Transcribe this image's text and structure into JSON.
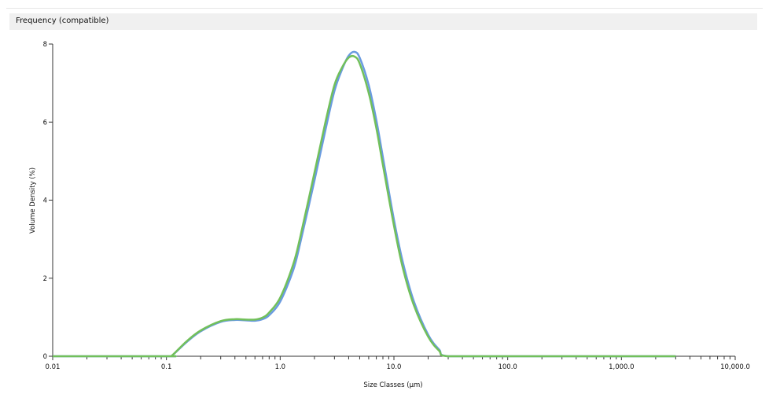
{
  "header": {
    "title": "Frequency (compatible)"
  },
  "chart_data": {
    "type": "line",
    "title": "Frequency (compatible)",
    "xlabel": "Size Classes (µm)",
    "ylabel": "Volume Density (%)",
    "xscale": "log",
    "xlim": [
      0.01,
      10000
    ],
    "ylim": [
      0,
      8
    ],
    "x_tick_labels": [
      "0.01",
      "0.1",
      "1.0",
      "10.0",
      "100.0",
      "1,000.0",
      "10,000.0"
    ],
    "y_tick_labels": [
      "0",
      "2",
      "4",
      "6",
      "8"
    ],
    "grid": false,
    "x": [
      0.01,
      0.1,
      0.11,
      0.15,
      0.2,
      0.3,
      0.4,
      0.5,
      0.6,
      0.7,
      0.8,
      1.0,
      1.3,
      1.5,
      2.0,
      2.5,
      3.0,
      3.5,
      4.0,
      4.5,
      5.0,
      6.0,
      7.0,
      8.0,
      10,
      12,
      15,
      20,
      25,
      30,
      100,
      1000,
      3000
    ],
    "series": [
      {
        "color": "#6a9be0",
        "values": [
          0,
          0,
          0,
          0.36,
          0.64,
          0.88,
          0.93,
          0.92,
          0.91,
          0.95,
          1.05,
          1.4,
          2.2,
          2.9,
          4.5,
          5.8,
          6.8,
          7.35,
          7.7,
          7.8,
          7.65,
          6.95,
          6.05,
          5.1,
          3.5,
          2.4,
          1.4,
          0.55,
          0.17,
          0,
          0,
          0,
          0
        ]
      },
      {
        "color": "#72c05a",
        "values": [
          0,
          0,
          0,
          0.38,
          0.66,
          0.9,
          0.95,
          0.94,
          0.94,
          0.99,
          1.12,
          1.5,
          2.35,
          3.05,
          4.7,
          6.0,
          6.95,
          7.4,
          7.65,
          7.68,
          7.5,
          6.75,
          5.85,
          4.9,
          3.35,
          2.25,
          1.3,
          0.5,
          0.14,
          0,
          0,
          0,
          0
        ]
      }
    ]
  }
}
